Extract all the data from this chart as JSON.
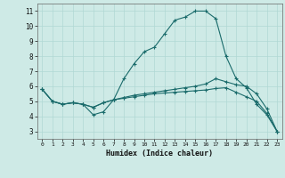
{
  "xlabel": "Humidex (Indice chaleur)",
  "background_color": "#ceeae6",
  "grid_color": "#b0d8d4",
  "line_color": "#1a6b6b",
  "marker": "+",
  "xlim": [
    -0.5,
    23.5
  ],
  "ylim": [
    2.5,
    11.5
  ],
  "xticks": [
    0,
    1,
    2,
    3,
    4,
    5,
    6,
    7,
    8,
    9,
    10,
    11,
    12,
    13,
    14,
    15,
    16,
    17,
    18,
    19,
    20,
    21,
    22,
    23
  ],
  "yticks": [
    3,
    4,
    5,
    6,
    7,
    8,
    9,
    10,
    11
  ],
  "curve1_x": [
    0,
    1,
    2,
    3,
    4,
    5,
    6,
    7,
    8,
    9,
    10,
    11,
    12,
    13,
    14,
    15,
    16,
    17,
    18,
    19,
    20,
    21,
    22,
    23
  ],
  "curve1_y": [
    5.8,
    5.0,
    4.8,
    4.9,
    4.8,
    4.1,
    4.3,
    5.1,
    6.5,
    7.5,
    8.3,
    8.6,
    9.5,
    10.4,
    10.6,
    11.0,
    11.0,
    10.5,
    8.0,
    6.5,
    5.9,
    4.8,
    4.1,
    3.0
  ],
  "curve2_x": [
    0,
    1,
    2,
    3,
    4,
    5,
    6,
    7,
    8,
    9,
    10,
    11,
    12,
    13,
    14,
    15,
    16,
    17,
    18,
    19,
    20,
    21,
    22,
    23
  ],
  "curve2_y": [
    5.8,
    5.0,
    4.8,
    4.9,
    4.8,
    4.6,
    4.9,
    5.1,
    5.25,
    5.4,
    5.5,
    5.6,
    5.7,
    5.8,
    5.9,
    6.0,
    6.15,
    6.5,
    6.3,
    6.1,
    6.0,
    5.5,
    4.5,
    3.0
  ],
  "curve3_x": [
    0,
    1,
    2,
    3,
    4,
    5,
    6,
    7,
    8,
    9,
    10,
    11,
    12,
    13,
    14,
    15,
    16,
    17,
    18,
    19,
    20,
    21,
    22,
    23
  ],
  "curve3_y": [
    5.8,
    5.0,
    4.8,
    4.9,
    4.8,
    4.6,
    4.9,
    5.1,
    5.2,
    5.3,
    5.4,
    5.5,
    5.55,
    5.6,
    5.65,
    5.7,
    5.75,
    5.85,
    5.9,
    5.6,
    5.3,
    5.0,
    4.2,
    3.0
  ]
}
